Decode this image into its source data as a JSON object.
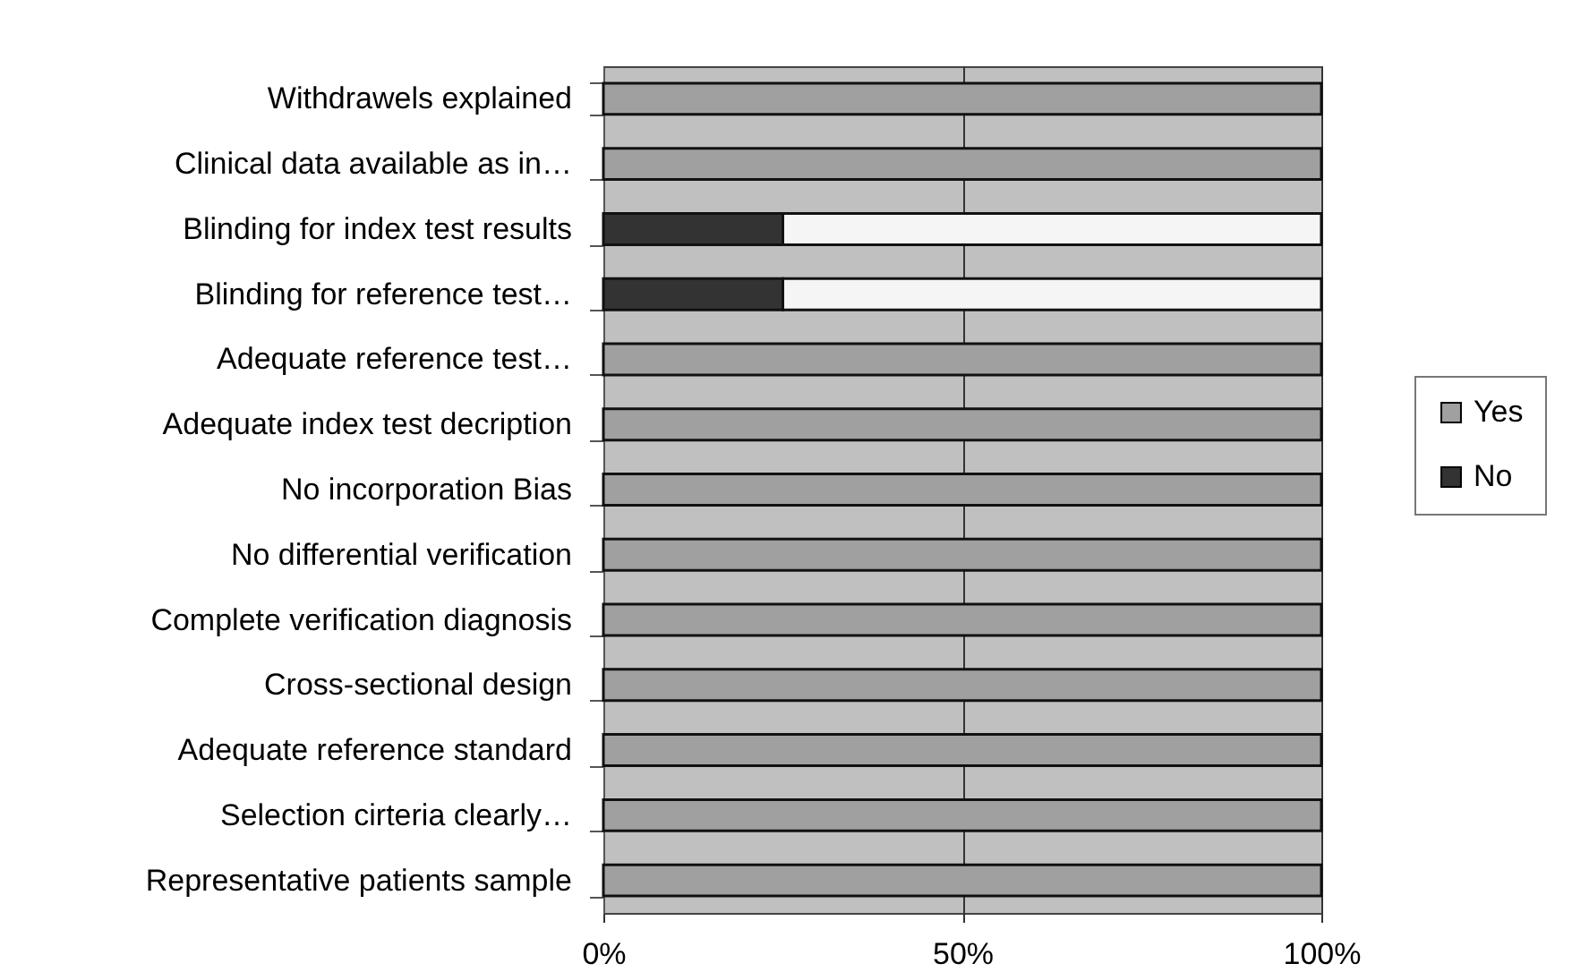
{
  "chart_data": {
    "type": "bar",
    "orientation": "horizontal",
    "stacked": true,
    "categories": [
      "Withdrawels explained",
      "Clinical data available as in…",
      "Blinding for index test results",
      "Blinding for reference test…",
      "Adequate reference test…",
      "Adequate index test decription",
      "No incorporation Bias",
      "No differential verification",
      "Complete verification diagnosis",
      "Cross-sectional design",
      "Adequate reference standard",
      "Selection cirteria clearly…",
      "Representative patients sample"
    ],
    "series": [
      {
        "name": "No",
        "color": "#333333",
        "values": [
          0,
          0,
          25,
          25,
          0,
          0,
          0,
          0,
          0,
          0,
          0,
          0,
          0
        ]
      },
      {
        "color": "#f5f5f5",
        "values": [
          0,
          0,
          75,
          75,
          0,
          0,
          0,
          0,
          0,
          0,
          0,
          0,
          0
        ]
      },
      {
        "name": "Yes",
        "color": "#a0a0a0",
        "values": [
          100,
          100,
          0,
          0,
          100,
          100,
          100,
          100,
          100,
          100,
          100,
          100,
          100
        ]
      }
    ],
    "xlim": [
      0,
      100
    ],
    "xticks": [
      {
        "value": 0,
        "label": "0%"
      },
      {
        "value": 50,
        "label": "50%"
      },
      {
        "value": 100,
        "label": "100%"
      }
    ],
    "grid": "x",
    "legend": "right"
  }
}
